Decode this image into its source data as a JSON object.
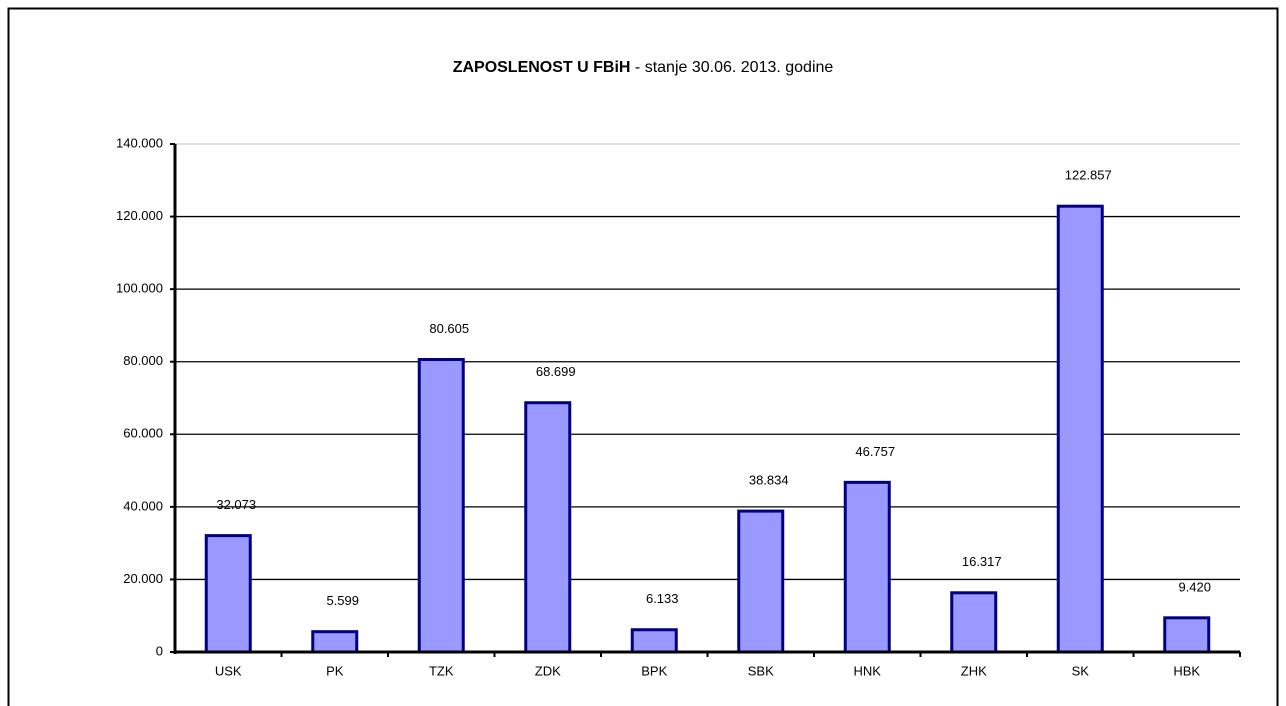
{
  "chart_data": {
    "type": "bar",
    "title": "ZAPOSLENOST U FBiH",
    "subtitle": "- stanje 30.06. 2013. godine",
    "categories": [
      "USK",
      "PK",
      "TZK",
      "ZDK",
      "BPK",
      "SBK",
      "HNK",
      "ZHK",
      "SK",
      "HBK"
    ],
    "values": [
      32073,
      5599,
      80605,
      68699,
      6133,
      38834,
      46757,
      16317,
      122857,
      9420
    ],
    "value_labels": [
      "32.073",
      "5.599",
      "80.605",
      "68.699",
      "6.133",
      "38.834",
      "46.757",
      "16.317",
      "122.857",
      "9.420"
    ],
    "color": "#9999ff",
    "edge_color": "#000080",
    "ylim": [
      0,
      140000
    ],
    "yticks": [
      0,
      {
        "value": 20000,
        "label": "20.000"
      },
      {
        "value": 40000,
        "label": "40.000"
      },
      {
        "value": 60000,
        "label": "60.000"
      },
      {
        "value": 80000,
        "label": "80.000"
      },
      {
        "value": 100000,
        "label": "100.000"
      },
      {
        "value": 120000,
        "label": "120.000"
      },
      {
        "value": 140000,
        "label": "140.000"
      }
    ],
    "grid": true
  }
}
